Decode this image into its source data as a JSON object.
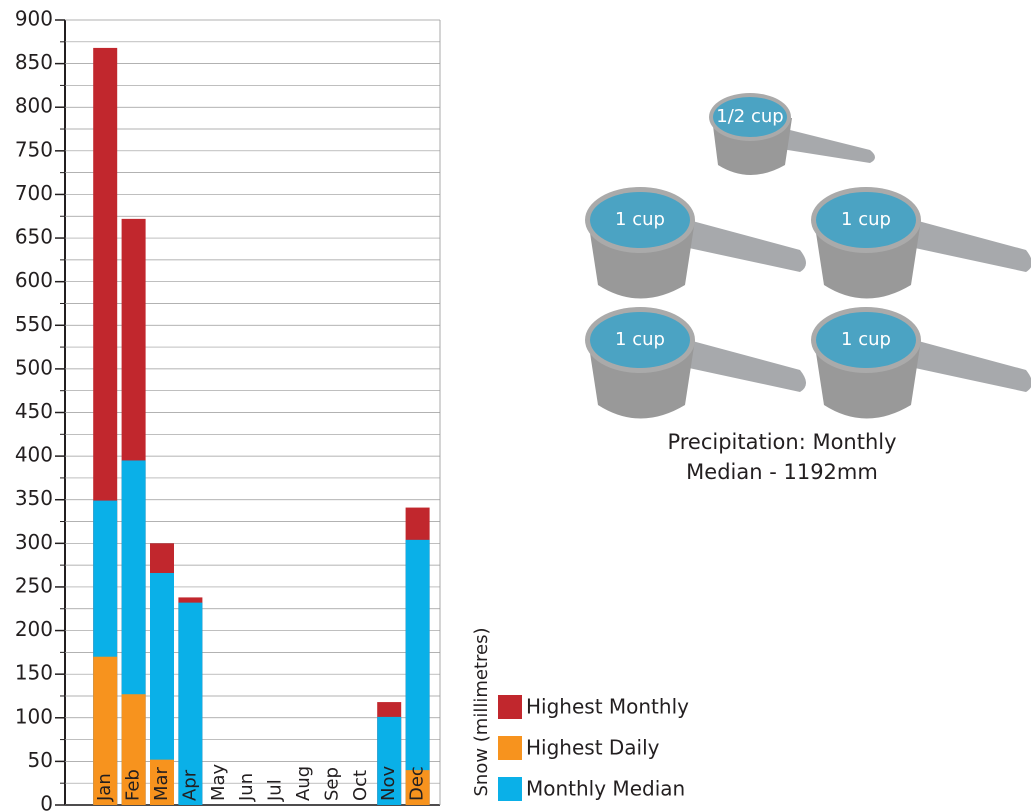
{
  "chart_data": {
    "type": "bar",
    "y_label": "Snow (millimetres)",
    "categories": [
      "Jan",
      "Feb",
      "Mar",
      "Apr",
      "May",
      "Jun",
      "Jul",
      "Aug",
      "Sep",
      "Oct",
      "Nov",
      "Dec"
    ],
    "series": [
      {
        "name": "Highest Monthly",
        "color": "#c1272d",
        "values": [
          868,
          672,
          300,
          238,
          null,
          null,
          null,
          null,
          null,
          null,
          118,
          341
        ]
      },
      {
        "name": "Highest Daily",
        "color": "#f7931e",
        "values": [
          170,
          127,
          52,
          null,
          null,
          null,
          null,
          null,
          null,
          null,
          null,
          40
        ]
      },
      {
        "name": "Monthly Median",
        "color": "#0ab0e8",
        "values": [
          349,
          395,
          266,
          232,
          null,
          null,
          null,
          null,
          null,
          null,
          101,
          304
        ]
      }
    ],
    "draw_order": [
      0,
      2,
      1
    ],
    "ylim": [
      0,
      900
    ],
    "yticks": [
      0,
      50,
      100,
      150,
      200,
      250,
      300,
      350,
      400,
      450,
      500,
      550,
      600,
      650,
      700,
      750,
      800,
      850,
      900
    ],
    "minor_yticks": [
      25,
      75,
      125,
      175,
      225,
      275,
      325,
      375,
      425,
      475,
      525,
      575,
      625,
      675,
      725,
      775,
      825,
      875
    ],
    "grid": true
  },
  "illustration": {
    "cup_labels": [
      "1/2 cup",
      "1 cup",
      "1 cup",
      "1 cup",
      "1 cup"
    ],
    "caption": [
      "Precipitation: Monthly",
      "Median - 1192mm"
    ]
  }
}
